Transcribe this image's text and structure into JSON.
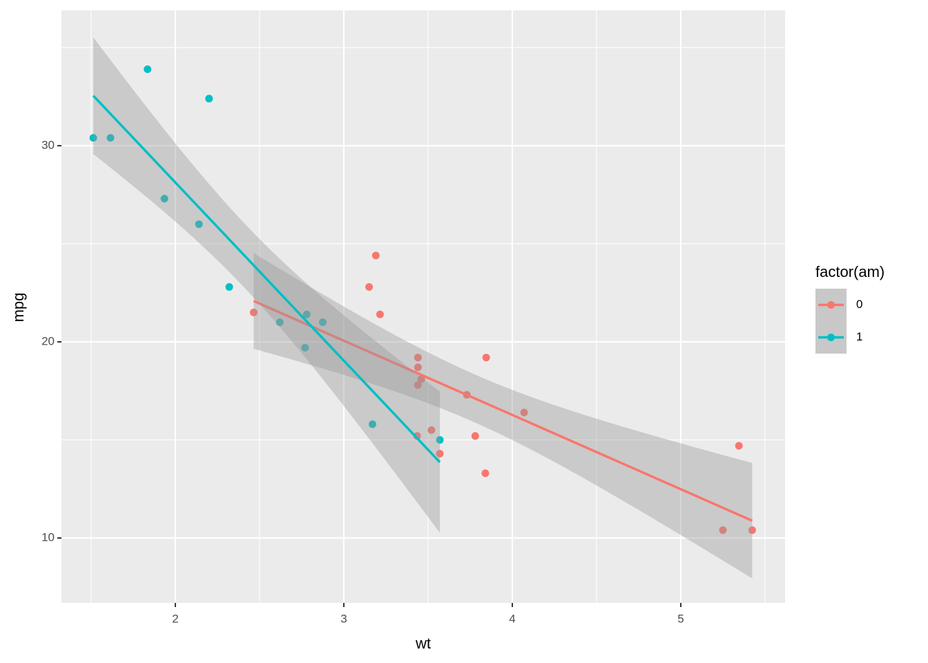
{
  "chart_data": {
    "type": "scatter",
    "xlabel": "wt",
    "ylabel": "mpg",
    "legend_title": "factor(am)",
    "legend": "right",
    "xlim": [
      1.324,
      5.619
    ],
    "ylim": [
      6.69,
      36.9
    ],
    "xticks": [
      2,
      3,
      4,
      5
    ],
    "yticks": [
      10,
      20,
      30
    ],
    "grid": true,
    "minor_grid": true,
    "smooth": "lm",
    "level": 0.95,
    "series": [
      {
        "name": "0",
        "color": "#F8766D",
        "x": [
          3.215,
          3.44,
          3.46,
          3.57,
          3.19,
          3.15,
          3.44,
          3.44,
          4.07,
          3.73,
          3.78,
          5.25,
          5.424,
          5.345,
          2.465,
          3.52,
          3.435,
          3.84,
          3.845
        ],
        "values": [
          21.4,
          18.7,
          18.1,
          14.3,
          24.4,
          22.8,
          19.2,
          17.8,
          16.4,
          17.3,
          15.2,
          10.4,
          10.4,
          14.7,
          21.5,
          15.5,
          15.2,
          13.3,
          19.2
        ]
      },
      {
        "name": "1",
        "color": "#00BFC4",
        "x": [
          2.62,
          2.875,
          2.32,
          2.2,
          1.615,
          1.835,
          1.935,
          2.14,
          1.513,
          3.17,
          2.77,
          3.57,
          2.78
        ],
        "values": [
          21.0,
          21.0,
          22.8,
          32.4,
          30.4,
          33.9,
          27.3,
          26.0,
          30.4,
          15.8,
          19.7,
          15.0,
          21.4
        ]
      }
    ]
  }
}
